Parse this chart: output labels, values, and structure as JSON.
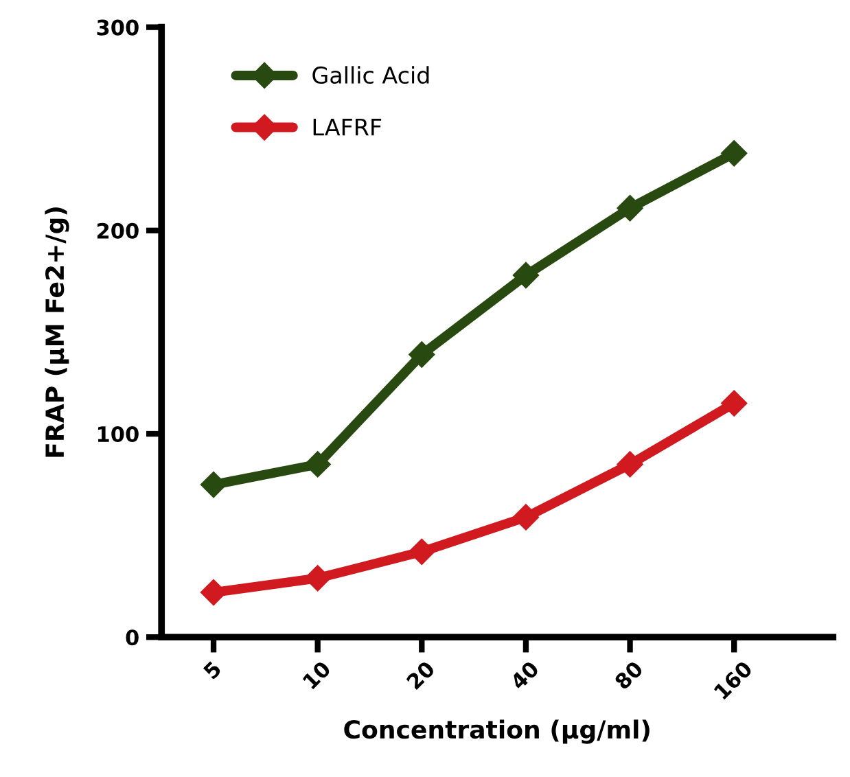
{
  "chart_data": {
    "type": "line",
    "xlabel": "Concentration (µg/ml)",
    "ylabel": "FRAP (µM Fe2+/g)",
    "categories": [
      "5",
      "10",
      "20",
      "40",
      "80",
      "160"
    ],
    "series": [
      {
        "name": "Gallic Acid",
        "color": "#284a10",
        "values": [
          75,
          85,
          139,
          178,
          211,
          238
        ]
      },
      {
        "name": "LAFRF",
        "color": "#d01a1f",
        "values": [
          22,
          29,
          42,
          59,
          85,
          115
        ]
      }
    ],
    "ylim": [
      0,
      300
    ],
    "yticks": [
      0,
      100,
      200,
      300
    ],
    "grid": false,
    "legend": "top left",
    "marker": "diamond",
    "line_style": "solid"
  }
}
